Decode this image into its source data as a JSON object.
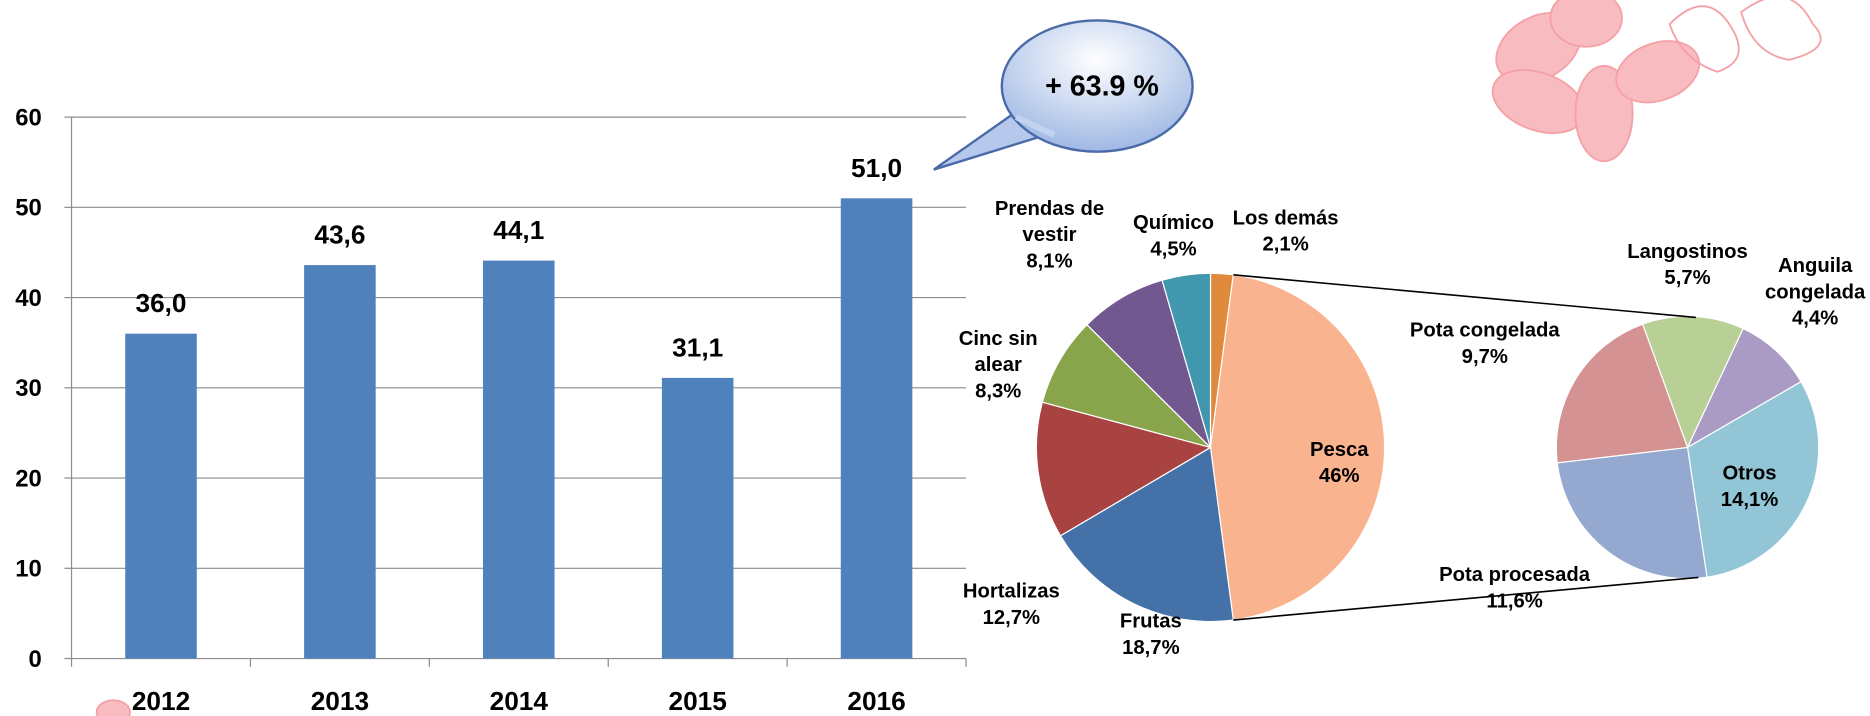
{
  "chart_data": [
    {
      "type": "bar",
      "categories": [
        "2012",
        "2013",
        "2014",
        "2015",
        "2016"
      ],
      "values": [
        36.0,
        43.6,
        44.1,
        31.1,
        51.0
      ],
      "value_labels": [
        "36,0",
        "43,6",
        "44,1",
        "31,1",
        "51,0"
      ],
      "color": "#4f81bd",
      "ylim": [
        0,
        60
      ],
      "yticks": [
        0,
        10,
        20,
        30,
        40,
        50,
        60
      ],
      "grid": true,
      "annotation": "+ 63.9 %"
    },
    {
      "type": "pie",
      "categories": [
        "Los demás",
        "Pesca",
        "Frutas",
        "Hortalizas",
        "Cinc sin alear",
        "Prendas de vestir",
        "Químico"
      ],
      "values": [
        2.1,
        46,
        18.7,
        12.7,
        8.3,
        8.1,
        4.5
      ],
      "value_labels": [
        "2,1%",
        "46%",
        "18,7%",
        "12,7%",
        "8,3%",
        "8,1%",
        "4,5%"
      ],
      "colors": [
        "#e08a3c",
        "#f9b48f",
        "#4472a8",
        "#a84342",
        "#88a54b",
        "#71588f",
        "#4198ae"
      ]
    },
    {
      "type": "pie",
      "categories": [
        "Langostinos",
        "Anguila congelada",
        "Otros",
        "Pota procesada",
        "Pota congelada"
      ],
      "values": [
        5.7,
        4.4,
        14.1,
        11.6,
        9.7
      ],
      "value_labels": [
        "5,7%",
        "4,4%",
        "14,1%",
        "11,6%",
        "9,7%"
      ],
      "colors": [
        "#b8cf96",
        "#a99bc4",
        "#92c5d6",
        "#95a9d0",
        "#d49392"
      ]
    }
  ]
}
